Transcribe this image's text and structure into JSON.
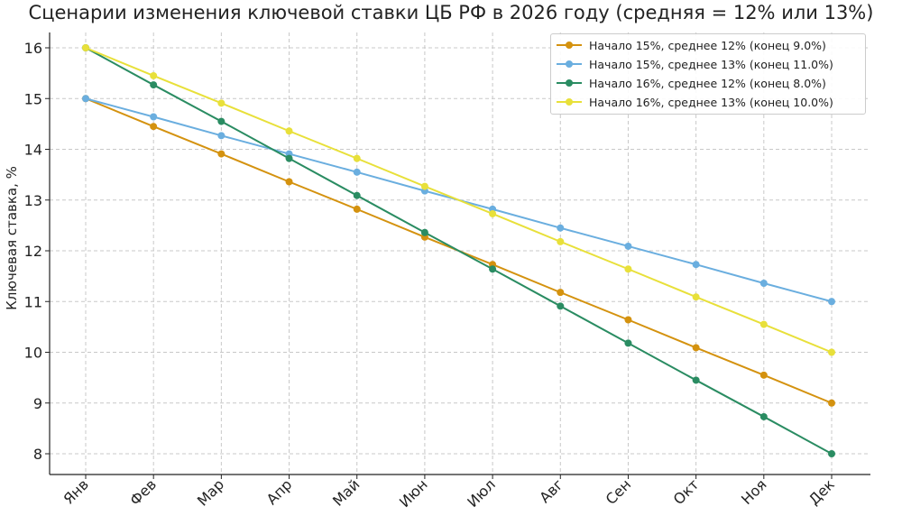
{
  "chart_data": {
    "type": "line",
    "title": "Сценарии изменения ключевой ставки ЦБ РФ в 2026 году (средняя = 12% или 13%)",
    "xlabel": "",
    "ylabel": "Ключевая ставка, %",
    "categories": [
      "Янв",
      "Фев",
      "Мар",
      "Апр",
      "Май",
      "Июн",
      "Июл",
      "Авг",
      "Сен",
      "Окт",
      "Ноя",
      "Дек"
    ],
    "ylim": [
      7.7,
      16.3
    ],
    "yticks": [
      8,
      9,
      10,
      11,
      12,
      13,
      14,
      15,
      16
    ],
    "grid": true,
    "legend_position": "upper right",
    "series": [
      {
        "name": "Начало 15%, среднее 12% (конец 9.0%)",
        "color": "#D4920F",
        "values": [
          15.0,
          14.45,
          13.91,
          13.36,
          12.82,
          12.27,
          11.73,
          11.18,
          10.64,
          10.09,
          9.55,
          9.0
        ]
      },
      {
        "name": "Начало 15%, среднее 13% (конец 11.0%)",
        "color": "#6AAEDF",
        "values": [
          15.0,
          14.64,
          14.27,
          13.91,
          13.55,
          13.18,
          12.82,
          12.45,
          12.09,
          11.73,
          11.36,
          11.0
        ]
      },
      {
        "name": "Начало 16%, среднее 12% (конец 8.0%)",
        "color": "#2A8C62",
        "values": [
          16.0,
          15.27,
          14.55,
          13.82,
          13.09,
          12.36,
          11.64,
          10.91,
          10.18,
          9.45,
          8.73,
          8.0
        ]
      },
      {
        "name": "Начало 16%, среднее 13% (конец 10.0%)",
        "color": "#E8E03A",
        "values": [
          16.0,
          15.45,
          14.91,
          14.36,
          13.82,
          13.27,
          12.73,
          12.18,
          11.64,
          11.09,
          10.55,
          10.0
        ]
      }
    ]
  }
}
